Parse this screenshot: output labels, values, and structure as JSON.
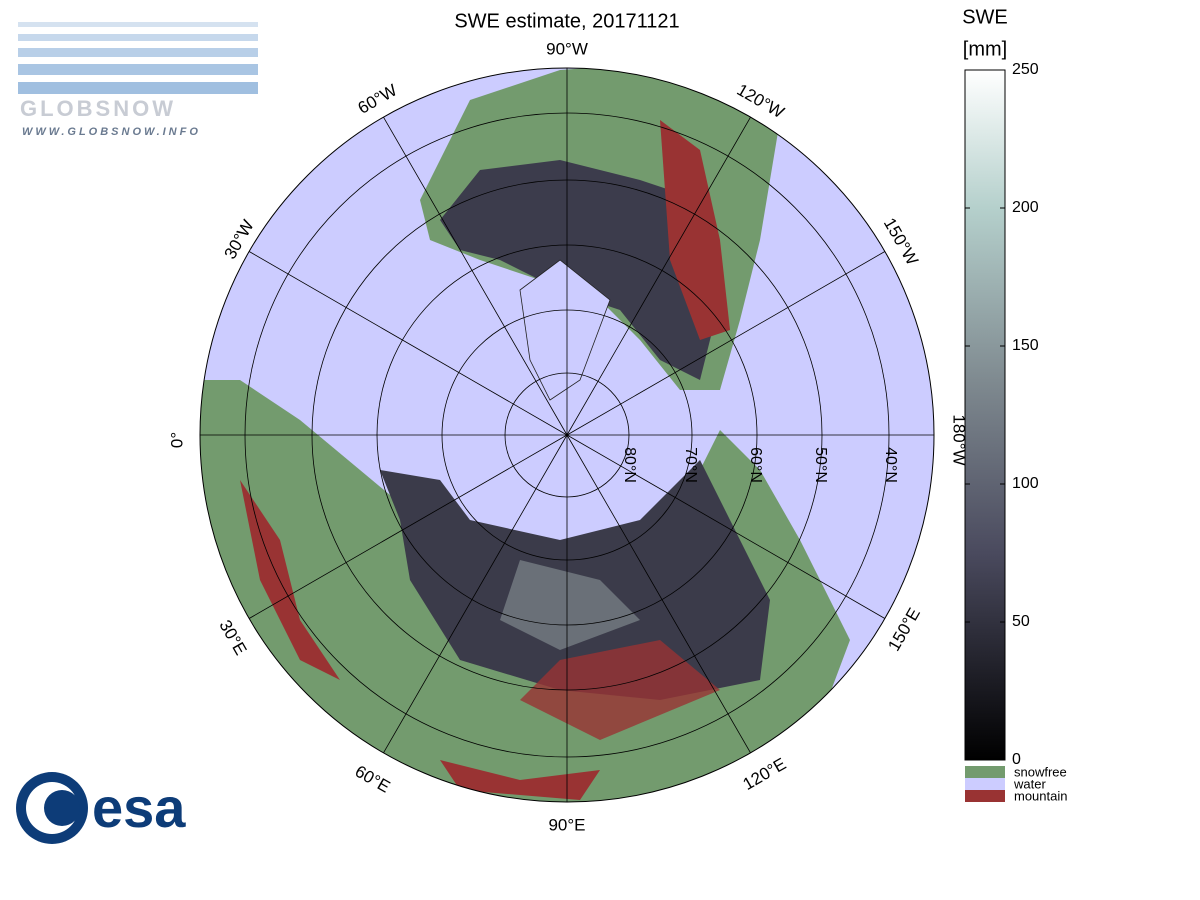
{
  "header": {
    "title": "SWE estimate, 20171121"
  },
  "logos": {
    "globsnow": "GLOBSNOW",
    "website": "WWW.GLOBSNOW.INFO",
    "esa": "esa"
  },
  "map": {
    "longitude_labels": [
      "90°W",
      "60°W",
      "120°W",
      "30°W",
      "150°W",
      "0°",
      "180°W",
      "30°E",
      "150°E",
      "60°E",
      "120°E",
      "90°E"
    ],
    "latitude_labels": [
      "80°N",
      "70°N",
      "60°N",
      "50°N",
      "40°N"
    ]
  },
  "colorbar": {
    "title": "SWE",
    "unit": "[mm]",
    "range": [
      0,
      250
    ],
    "ticks": [
      0,
      50,
      100,
      150,
      200,
      250
    ]
  },
  "legend": [
    {
      "label": "snowfree",
      "color": "#739b6e"
    },
    {
      "label": "water",
      "color": "#ccccff"
    },
    {
      "label": "mountain",
      "color": "#993333"
    }
  ]
}
